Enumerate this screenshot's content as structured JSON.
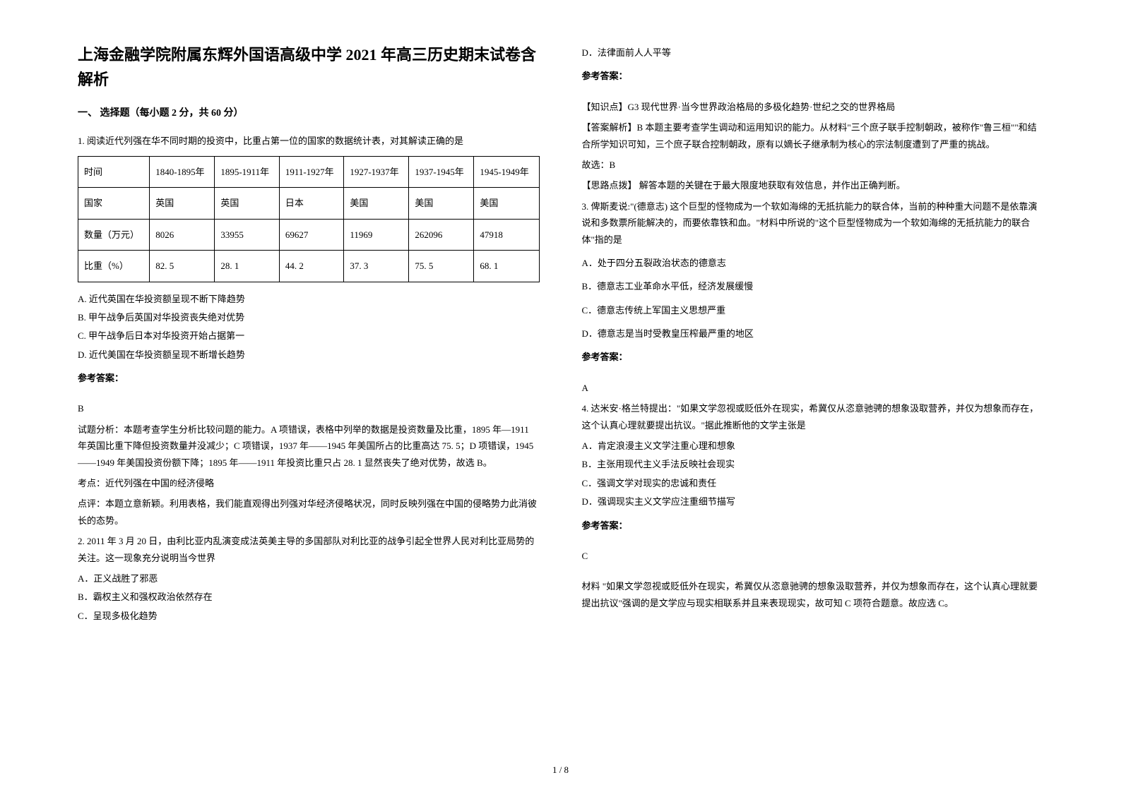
{
  "title": "上海金融学院附属东辉外国语高级中学 2021 年高三历史期末试卷含解析",
  "section1": "一、 选择题（每小题 2 分，共 60 分）",
  "q1": {
    "stem": "1. 阅读近代列强在华不同时期的投资中，比重占第一位的国家的数据统计表，对其解读正确的是",
    "table": {
      "r0": [
        "时间",
        "1840-1895年",
        "1895-1911年",
        "1911-1927年",
        "1927-1937年",
        "1937-1945年",
        "1945-1949年"
      ],
      "r1": [
        "国家",
        "英国",
        "英国",
        "日本",
        "美国",
        "美国",
        "美国"
      ],
      "r2": [
        "数量（万元）",
        "8026",
        "33955",
        "69627",
        "11969",
        "262096",
        "47918"
      ],
      "r3": [
        "比重（%）",
        "82. 5",
        "28. 1",
        "44. 2",
        "37. 3",
        "75. 5",
        "68. 1"
      ]
    },
    "A": "A. 近代英国在华投资额呈现不断下降趋势",
    "B": "B. 甲午战争后英国对华投资丧失绝对优势",
    "C": "C. 甲午战争后日本对华投资开始占据第一",
    "D": "D. 近代美国在华投资额呈现不断增长趋势",
    "ansHead": "参考答案：",
    "ans": "B",
    "exp1": "试题分析：本题考查学生分析比较问题的能力。A 项错误，表格中列举的数据是投资数量及比重，1895 年—1911 年英国比重下降但投资数量并没减少；C 项错误，1937 年——1945 年美国所占的比重高达 75. 5；D 项错误，1945——1949 年美国投资份额下降；1895 年——1911 年投资比重只占 28. 1 显然丧失了绝对优势，故选 B。",
    "exp2a": "考点：近代列强在中国",
    "exp2b": "经济侵略",
    "exp3": "点评：本题立意新颖。利用表格，我们能直观得出列强对华经济侵略状况，同时反映列强在中国的侵略势力此消彼长的态势。"
  },
  "q2": {
    "stem": "2. 2011 年 3 月 20 日，由利比亚内乱演变成法英美主导的多国部队对利比亚的战争引起全世界人民对利比亚局势的关注。这一现象充分说明当今世界",
    "A": "A．正义战胜了邪恶",
    "B": "B．霸权主义和强权政治依然存在",
    "C": "C．呈现多极化趋势",
    "D": "D．法律面前人人平等",
    "ansHead": "参考答案：",
    "exp1": "【知识点】G3 现代世界·当今世界政治格局的多极化趋势·世纪之交的世界格局",
    "exp2": "【答案解析】B 本题主要考查学生调动和运用知识的能力。从材料\"三个庶子联手控制朝政，被称作\"鲁三桓\"\"和结合所学知识可知，三个庶子联合控制朝政，原有以嫡长子继承制为核心的宗法制度遭到了严重的挑战。",
    "exp3": "故选：B",
    "exp4": "【思路点拨】 解答本题的关键在于最大限度地获取有效信息，并作出正确判断。"
  },
  "q3": {
    "stem": "3. 俾斯麦说:\"(德意志) 这个巨型的怪物成为一个软如海绵的无抵抗能力的联合体，当前的种种重大问题不是依靠演说和多数票所能解决的，而要依靠铁和血。\"材料中所说的\"这个巨型怪物成为一个软如海绵的无抵抗能力的联合体\"指的是",
    "A": "A．处于四分五裂政治状态的德意志",
    "B": "B．德意志工业革命水平低，经济发展缓慢",
    "C": "C．德意志传统上军国主义思想严重",
    "D": "D．德意志是当时受教皇压榨最严重的地区",
    "ansHead": "参考答案：",
    "ans": "A"
  },
  "q4": {
    "stem": "4. 达米安·格兰特提出：\"如果文学忽视或贬低外在现实，希冀仅从恣意驰骋的想象汲取营养，并仅为想象而存在，这个认真心理就要提出抗议。\"据此推断他的文学主张是",
    "A": "A．肯定浪漫主义文学注重心理和想象",
    "B": "B．主张用现代主义手法反映社会现实",
    "C": "C．强调文学对现实的忠诚和责任",
    "D": "D．强调现实主义文学应注重细节描写",
    "ansHead": "参考答案：",
    "ans": "C",
    "exp": "材料 \"如果文学忽视或贬低外在现实，希冀仅从恣意驰骋的想象汲取营养，并仅为想象而存在，这个认真心理就要提出抗议\"强调的是文学应与现实相联系并且来表现现实，故可知 C 项符合题意。故应选 C。"
  },
  "footer": "1 / 8"
}
